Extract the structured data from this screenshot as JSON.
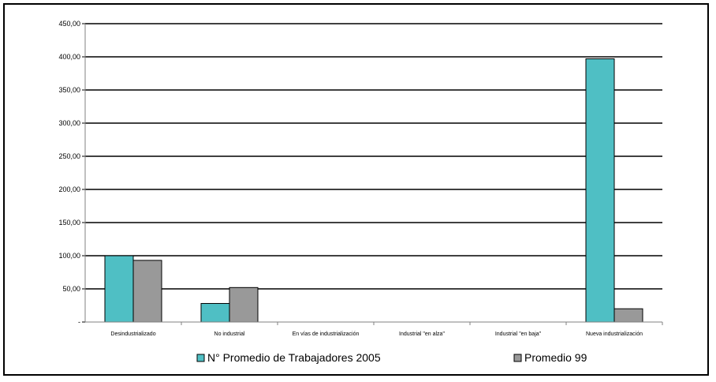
{
  "chart_data": {
    "type": "bar",
    "categories": [
      "Desindustrializado",
      "No industrial",
      "En vías de industrialización",
      "Industrial \"en alza\"",
      "Industrial \"en baja\"",
      "Nueva industrialización"
    ],
    "series": [
      {
        "name": "N° Promedio de Trabajadores 2005",
        "values": [
          100,
          28,
          0,
          0,
          0,
          397
        ],
        "color": "#4fbfc4"
      },
      {
        "name": "Promedio 99",
        "values": [
          93,
          52,
          0,
          0,
          0,
          20
        ],
        "color": "#999999"
      }
    ],
    "yticks": [
      0,
      50,
      100,
      150,
      200,
      250,
      300,
      350,
      400,
      450
    ],
    "ytick_labels": [
      "-",
      "50,00",
      "100,00",
      "150,00",
      "200,00",
      "250,00",
      "300,00",
      "350,00",
      "400,00",
      "450,00"
    ],
    "ylim": [
      0,
      450
    ],
    "grid": true,
    "legend_position": "bottom",
    "title": "",
    "xlabel": "",
    "ylabel": ""
  }
}
